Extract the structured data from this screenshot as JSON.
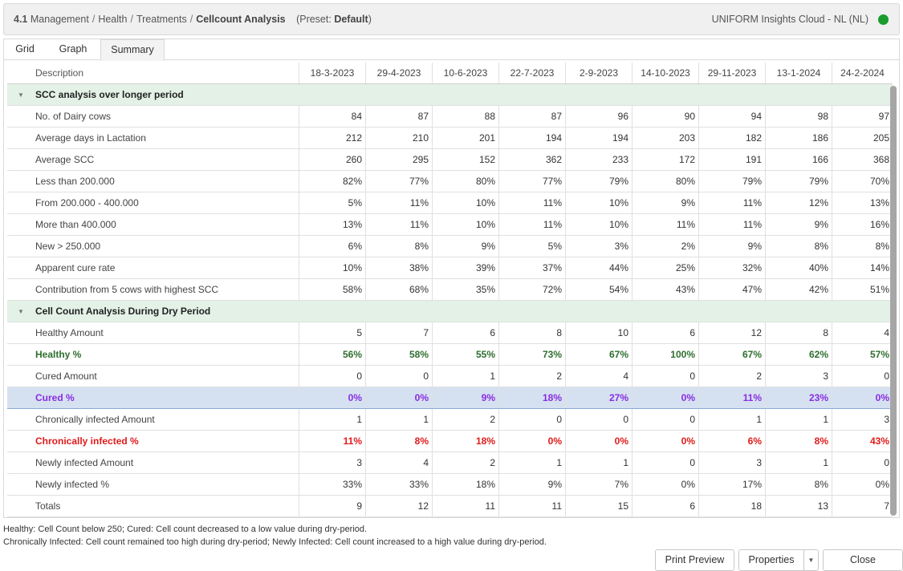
{
  "breadcrumb": {
    "number": "4.1",
    "parts": [
      "Management",
      "Health",
      "Treatments"
    ],
    "current": "Cellcount Analysis",
    "preset_label": "(Preset:",
    "preset_value": "Default",
    "preset_close": ")"
  },
  "app_name": "UNIFORM Insights Cloud - NL (NL)",
  "status_color": "#1a9c2e",
  "tabs": [
    "Grid",
    "Graph",
    "Summary"
  ],
  "active_tab": "Summary",
  "table": {
    "description_header": "Description",
    "columns": [
      "18-3-2023",
      "29-4-2023",
      "10-6-2023",
      "22-7-2023",
      "2-9-2023",
      "14-10-2023",
      "29-11-2023",
      "13-1-2024",
      "24-2-2024"
    ],
    "rows": [
      {
        "type": "group",
        "label": "SCC analysis over longer period"
      },
      {
        "label": "No. of Dairy cows",
        "values": [
          "84",
          "87",
          "88",
          "87",
          "96",
          "90",
          "94",
          "98",
          "97"
        ]
      },
      {
        "label": "Average days in Lactation",
        "values": [
          "212",
          "210",
          "201",
          "194",
          "194",
          "203",
          "182",
          "186",
          "205"
        ]
      },
      {
        "label": "Average SCC",
        "values": [
          "260",
          "295",
          "152",
          "362",
          "233",
          "172",
          "191",
          "166",
          "368"
        ]
      },
      {
        "label": "Less than 200.000",
        "values": [
          "82%",
          "77%",
          "80%",
          "77%",
          "79%",
          "80%",
          "79%",
          "79%",
          "70%"
        ]
      },
      {
        "label": "From 200.000 - 400.000",
        "values": [
          "5%",
          "11%",
          "10%",
          "11%",
          "10%",
          "9%",
          "11%",
          "12%",
          "13%"
        ]
      },
      {
        "label": "More than 400.000",
        "values": [
          "13%",
          "11%",
          "10%",
          "11%",
          "10%",
          "11%",
          "11%",
          "9%",
          "16%"
        ]
      },
      {
        "label": "New > 250.000",
        "values": [
          "6%",
          "8%",
          "9%",
          "5%",
          "3%",
          "2%",
          "9%",
          "8%",
          "8%"
        ]
      },
      {
        "label": "Apparent cure rate",
        "values": [
          "10%",
          "38%",
          "39%",
          "37%",
          "44%",
          "25%",
          "32%",
          "40%",
          "14%"
        ]
      },
      {
        "label": "Contribution from 5 cows with highest SCC",
        "values": [
          "58%",
          "68%",
          "35%",
          "72%",
          "54%",
          "43%",
          "47%",
          "42%",
          "51%"
        ]
      },
      {
        "type": "group",
        "label": "Cell Count Analysis During Dry Period"
      },
      {
        "label": "Healthy Amount",
        "values": [
          "5",
          "7",
          "6",
          "8",
          "10",
          "6",
          "12",
          "8",
          "4"
        ]
      },
      {
        "label": "Healthy %",
        "style": "healthy",
        "values": [
          "56%",
          "58%",
          "55%",
          "73%",
          "67%",
          "100%",
          "67%",
          "62%",
          "57%"
        ]
      },
      {
        "label": "Cured Amount",
        "values": [
          "0",
          "0",
          "1",
          "2",
          "4",
          "0",
          "2",
          "3",
          "0"
        ]
      },
      {
        "label": "Cured %",
        "style": "cured",
        "values": [
          "0%",
          "0%",
          "9%",
          "18%",
          "27%",
          "0%",
          "11%",
          "23%",
          "0%"
        ]
      },
      {
        "label": "Chronically infected Amount",
        "values": [
          "1",
          "1",
          "2",
          "0",
          "0",
          "0",
          "1",
          "1",
          "3"
        ]
      },
      {
        "label": "Chronically infected %",
        "style": "chronic",
        "values": [
          "11%",
          "8%",
          "18%",
          "0%",
          "0%",
          "0%",
          "6%",
          "8%",
          "43%"
        ]
      },
      {
        "label": "Newly infected Amount",
        "values": [
          "3",
          "4",
          "2",
          "1",
          "1",
          "0",
          "3",
          "1",
          "0"
        ]
      },
      {
        "label": "Newly infected %",
        "values": [
          "33%",
          "33%",
          "18%",
          "9%",
          "7%",
          "0%",
          "17%",
          "8%",
          "0%"
        ]
      },
      {
        "label": "Totals",
        "values": [
          "9",
          "12",
          "11",
          "11",
          "15",
          "6",
          "18",
          "13",
          "7"
        ]
      }
    ]
  },
  "footnotes": [
    "Healthy: Cell Count below 250; Cured: Cell count decreased to a low value during dry-period.",
    "Chronically Infected: Cell count remained too high during dry-period; Newly Infected: Cell count increased to a high value during dry-period."
  ],
  "buttons": {
    "print_preview": "Print Preview",
    "properties": "Properties",
    "close": "Close"
  },
  "icons": {
    "collapse": "triangle-down-icon",
    "dropdown": "caret-down-icon",
    "status": "status-dot-icon"
  }
}
